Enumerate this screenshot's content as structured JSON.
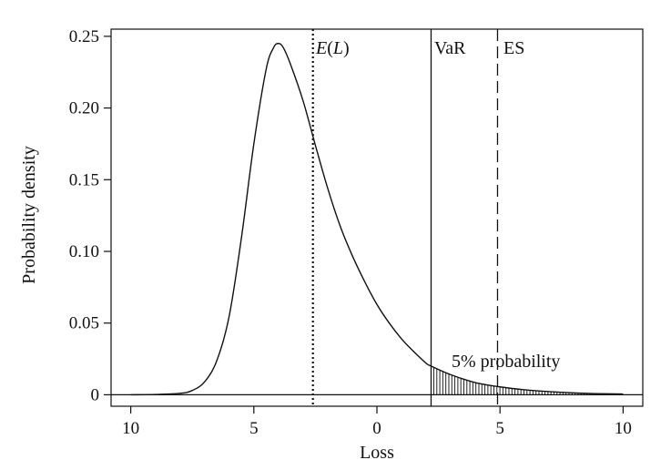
{
  "chart_data": {
    "type": "line",
    "title": "",
    "xlabel": "Loss",
    "ylabel": "Probability density",
    "xlim": [
      -10.8,
      10.8
    ],
    "ylim": [
      -0.008,
      0.255
    ],
    "x_ticks": [
      -10,
      -5,
      0,
      5,
      10
    ],
    "x_tick_labels": [
      "10",
      "5",
      "0",
      "5",
      "10"
    ],
    "y_ticks": [
      0,
      0.05,
      0.1,
      0.15,
      0.2,
      0.25
    ],
    "y_tick_labels": [
      "0",
      "0.05",
      "0.10",
      "0.15",
      "0.20",
      "0.25"
    ],
    "grid": false,
    "series": [
      {
        "x": [
          -10,
          -9,
          -8,
          -7.5,
          -7,
          -6.5,
          -6,
          -5.5,
          -5,
          -4.5,
          -4.2,
          -4,
          -3.8,
          -3.5,
          -3,
          -2.5,
          -2,
          -1.5,
          -1,
          -0.5,
          0,
          0.5,
          1,
          1.5,
          2,
          2.2,
          3,
          4,
          5,
          6,
          7,
          8,
          9,
          10
        ],
        "y": [
          0,
          0.0002,
          0.001,
          0.003,
          0.009,
          0.024,
          0.055,
          0.11,
          0.175,
          0.227,
          0.242,
          0.245,
          0.242,
          0.23,
          0.205,
          0.174,
          0.144,
          0.118,
          0.097,
          0.079,
          0.063,
          0.05,
          0.039,
          0.03,
          0.022,
          0.02,
          0.014,
          0.0085,
          0.0055,
          0.0035,
          0.0022,
          0.0013,
          0.0008,
          0.0005
        ]
      }
    ],
    "markers": [
      {
        "label_main": "E",
        "label_paren_open": "(",
        "label_var": "L",
        "label_paren_close": ")",
        "x": -2.6,
        "style": "dotted"
      },
      {
        "label": "VaR",
        "x": 2.2,
        "style": "solid"
      },
      {
        "label": "ES",
        "x": 4.9,
        "style": "dashed"
      }
    ],
    "shaded_region": {
      "from": 2.2,
      "to": 10,
      "label": "5% probability",
      "pattern": "vertical-hatch"
    }
  }
}
